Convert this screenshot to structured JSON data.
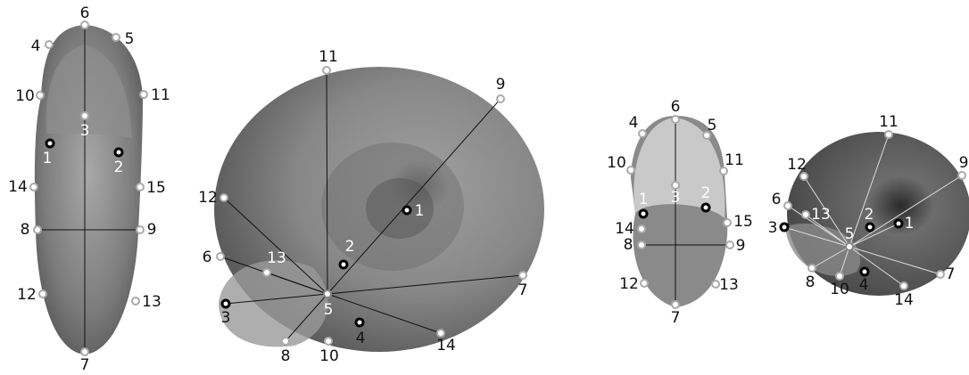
{
  "panels": [
    {
      "landmarks": [
        "6",
        "5",
        "4",
        "10",
        "11",
        "3",
        "1",
        "2",
        "14",
        "15",
        "8",
        "9",
        "12",
        "13",
        "7"
      ]
    },
    {
      "landmarks": [
        "11",
        "9",
        "1",
        "12",
        "2",
        "13",
        "6",
        "5",
        "7",
        "3",
        "4",
        "8",
        "10",
        "14"
      ]
    },
    {
      "landmarks": [
        "6",
        "5",
        "4",
        "10",
        "11",
        "3",
        "2",
        "1",
        "14",
        "15",
        "8",
        "9",
        "12",
        "13",
        "7"
      ]
    },
    {
      "landmarks": [
        "11",
        "9",
        "12",
        "6",
        "13",
        "3",
        "2",
        "1",
        "5",
        "7",
        "8",
        "10",
        "4",
        "14"
      ]
    }
  ]
}
